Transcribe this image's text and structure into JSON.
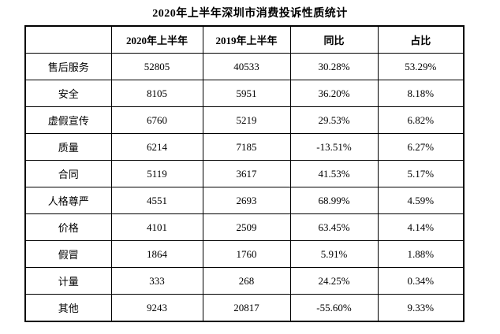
{
  "title": "2020年上半年深圳市消费投诉性质统计",
  "table": {
    "columns": [
      "",
      "2020年上半年",
      "2019年上半年",
      "同比",
      "占比"
    ],
    "column_keys": [
      "category",
      "value_2020",
      "value_2019",
      "yoy",
      "share"
    ],
    "rows": [
      [
        "售后服务",
        "52805",
        "40533",
        "30.28%",
        "53.29%"
      ],
      [
        "安全",
        "8105",
        "5951",
        "36.20%",
        "8.18%"
      ],
      [
        "虚假宣传",
        "6760",
        "5219",
        "29.53%",
        "6.82%"
      ],
      [
        "质量",
        "6214",
        "7185",
        "-13.51%",
        "6.27%"
      ],
      [
        "合同",
        "5119",
        "3617",
        "41.53%",
        "5.17%"
      ],
      [
        "人格尊严",
        "4551",
        "2693",
        "68.99%",
        "4.59%"
      ],
      [
        "价格",
        "4101",
        "2509",
        "63.45%",
        "4.14%"
      ],
      [
        "假冒",
        "1864",
        "1760",
        "5.91%",
        "1.88%"
      ],
      [
        "计量",
        "333",
        "268",
        "24.25%",
        "0.34%"
      ],
      [
        "其他",
        "9243",
        "20817",
        "-55.60%",
        "9.33%"
      ]
    ]
  },
  "colors": {
    "border": "#000000",
    "text": "#000000",
    "background": "#ffffff"
  }
}
